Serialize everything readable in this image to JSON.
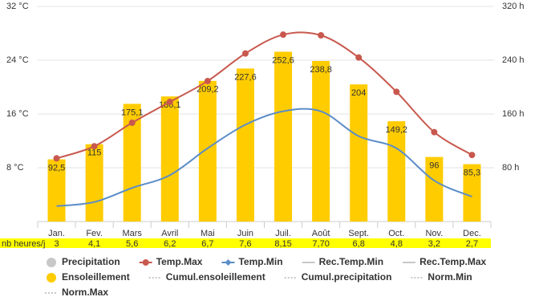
{
  "chart_data": {
    "type": "bar-line",
    "categories": [
      "Jan.",
      "Fev.",
      "Mars",
      "Avril",
      "Mai",
      "Juin",
      "Juil.",
      "Août",
      "Sept.",
      "Oct.",
      "Nov.",
      "Dec."
    ],
    "ylim": [
      0,
      32
    ],
    "yticks": [
      {
        "value": 8,
        "label": "8 °C"
      },
      {
        "value": 16,
        "label": "16 °C"
      },
      {
        "value": 24,
        "label": "24 °C"
      },
      {
        "value": 32,
        "label": "32 °C"
      }
    ],
    "y2lim": [
      0,
      320
    ],
    "y2ticks": [
      {
        "value": 80,
        "label": "80 h"
      },
      {
        "value": 160,
        "label": "160 h"
      },
      {
        "value": 240,
        "label": "240 h"
      },
      {
        "value": 320,
        "label": "320 h"
      }
    ],
    "grid": true,
    "series": [
      {
        "name": "Precipitation",
        "color": "#c8c8c8",
        "symbol": "circle",
        "visible": false
      },
      {
        "name": "Temp.Max",
        "color": "#c8584e",
        "symbol": "circle-line",
        "visible": true,
        "kind": "line",
        "values": [
          9.4,
          11.2,
          14.7,
          17.8,
          20.9,
          25.0,
          27.8,
          27.7,
          24.4,
          19.3,
          13.3,
          9.9
        ]
      },
      {
        "name": "Temp.Min",
        "color": "#5b8dc8",
        "symbol": "diamond-line",
        "visible": true,
        "kind": "line",
        "values": [
          2.3,
          2.9,
          5.0,
          6.9,
          10.9,
          14.4,
          16.4,
          16.4,
          12.7,
          10.9,
          6.1,
          3.7
        ]
      },
      {
        "name": "Rec.Temp.Min",
        "color": "#c8c8c8",
        "symbol": "line",
        "visible": false
      },
      {
        "name": "Rec.Temp.Max",
        "color": "#c8c8c8",
        "symbol": "line",
        "visible": false
      },
      {
        "name": "Ensoleillement",
        "color": "#ffcc00",
        "symbol": "circle",
        "visible": true,
        "kind": "bar",
        "axis": "y2",
        "values": [
          92.5,
          115,
          175.1,
          186.1,
          209.2,
          227.6,
          252.6,
          238.8,
          204,
          149.2,
          96,
          85.3
        ],
        "value_labels": [
          "92,5",
          "115",
          "175,1",
          "186,1",
          "209,2",
          "227,6",
          "252,6",
          "238,8",
          "204",
          "149,2",
          "96",
          "85,3"
        ]
      },
      {
        "name": "Cumul.ensoleillement",
        "color": "#c8c8c8",
        "symbol": "dotted",
        "visible": false
      },
      {
        "name": "Cumul.precipitation",
        "color": "#c8c8c8",
        "symbol": "dotted",
        "visible": false
      },
      {
        "name": "Norm.Min",
        "color": "#c8c8c8",
        "symbol": "dotted",
        "visible": false
      },
      {
        "name": "Norm.Max",
        "color": "#c8c8c8",
        "symbol": "dotted",
        "visible": false
      }
    ],
    "daily_hours": {
      "label": "nb heures/j",
      "color": "#ffff00",
      "values": [
        "3",
        "4,1",
        "5,6",
        "6,2",
        "6,7",
        "7,6",
        "8,15",
        "7,70",
        "6,8",
        "4,8",
        "3,2",
        "2,7"
      ]
    }
  }
}
